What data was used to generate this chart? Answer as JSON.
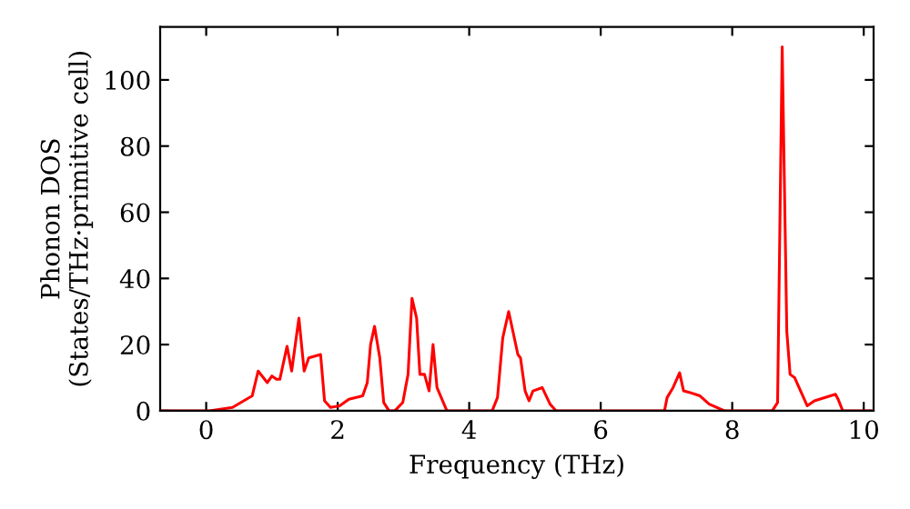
{
  "chart_data": {
    "type": "line",
    "xlabel": "Frequency (THz)",
    "ylabel": "Phonon DOS\n(States/THz·primitive cell)",
    "x": [
      -0.7,
      0.05,
      0.4,
      0.7,
      0.79,
      0.93,
      1.0,
      1.07,
      1.12,
      1.23,
      1.3,
      1.41,
      1.49,
      1.56,
      1.74,
      1.8,
      1.89,
      2.03,
      2.17,
      2.38,
      2.45,
      2.5,
      2.56,
      2.64,
      2.7,
      2.78,
      2.87,
      2.99,
      3.07,
      3.13,
      3.2,
      3.25,
      3.32,
      3.39,
      3.45,
      3.51,
      3.66,
      4.35,
      4.43,
      4.51,
      4.6,
      4.74,
      4.78,
      4.85,
      4.91,
      4.97,
      5.11,
      5.23,
      5.32,
      6.97,
      7.01,
      7.1,
      7.2,
      7.26,
      7.36,
      7.51,
      7.65,
      7.88,
      8.61,
      8.69,
      8.76,
      8.83,
      8.88,
      8.95,
      9.14,
      9.25,
      9.57,
      9.61,
      9.68,
      10.1
    ],
    "series": [
      {
        "color": "#ff0000",
        "values": [
          0,
          0,
          1,
          4.5,
          12,
          8.5,
          10.5,
          9.5,
          9.5,
          19.5,
          12,
          28,
          12,
          16,
          17,
          3,
          1,
          1.5,
          3.5,
          4.5,
          8.5,
          20,
          25.5,
          16,
          2.5,
          0,
          0,
          2.5,
          11,
          34,
          28,
          11,
          11,
          6,
          20,
          7,
          0,
          0,
          4,
          22,
          30,
          17,
          16,
          6,
          3,
          6,
          7,
          2,
          0,
          0,
          4,
          7,
          11.5,
          6,
          5.5,
          4.5,
          2,
          0,
          0,
          2.5,
          110,
          24,
          11,
          10,
          1.5,
          3,
          5,
          3.5,
          0,
          0
        ]
      }
    ],
    "xlim": [
      -0.7,
      10.15
    ],
    "ylim": [
      0,
      116
    ],
    "xticks": [
      0,
      2,
      4,
      6,
      8,
      10
    ],
    "yticks": [
      0,
      20,
      40,
      60,
      80,
      100
    ],
    "grid": false,
    "legend": false,
    "line_style": "solid",
    "marker": "none"
  }
}
